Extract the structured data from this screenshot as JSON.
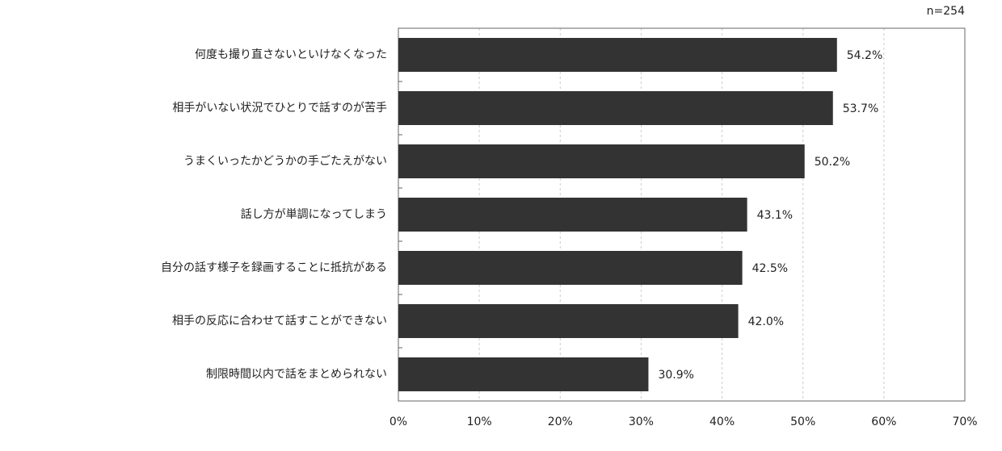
{
  "chart_data": {
    "type": "bar",
    "orientation": "horizontal",
    "note": "n=254",
    "categories": [
      "何度も撮り直さないといけなくなった",
      "相手がいない状況でひとりで話すのが苦手",
      "うまくいったかどうかの手ごたえがない",
      "話し方が単調になってしまう",
      "自分の話す様子を録画することに抵抗がある",
      "相手の反応に合わせて話すことができない",
      "制限時間以内で話をまとめられない"
    ],
    "values": [
      54.2,
      53.7,
      50.2,
      43.1,
      42.5,
      42.0,
      30.9
    ],
    "value_labels": [
      "54.2%",
      "53.7%",
      "50.2%",
      "43.1%",
      "42.5%",
      "42.0%",
      "30.9%"
    ],
    "color": "#333333",
    "xlim": [
      0,
      70
    ],
    "xticks": [
      {
        "value": 0,
        "label": "0%"
      },
      {
        "value": 10,
        "label": "10%"
      },
      {
        "value": 20,
        "label": "20%"
      },
      {
        "value": 30,
        "label": "30%"
      },
      {
        "value": 40,
        "label": "40%"
      },
      {
        "value": 50,
        "label": "50%"
      },
      {
        "value": 60,
        "label": "60%"
      },
      {
        "value": 70,
        "label": "70%"
      }
    ],
    "grid": true
  }
}
